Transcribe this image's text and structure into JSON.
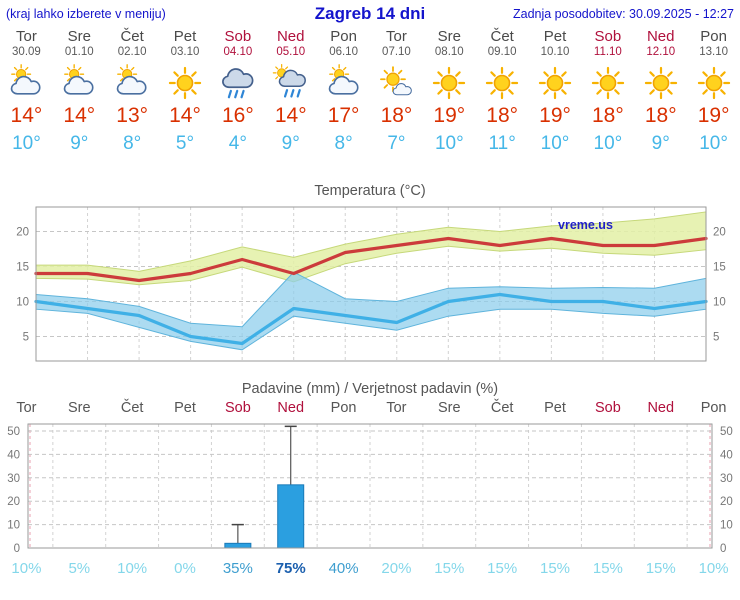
{
  "header": {
    "left_note": "(kraj lahko izberete v meniju)",
    "title": "Zagreb 14 dni",
    "updated": "Zadnja posodobitev: 30.09.2025 - 12:27"
  },
  "forecast": {
    "days": [
      {
        "name": "Tor",
        "date": "30.09",
        "icon": "cloud-sun",
        "tmax": "14°",
        "tmin": "10°",
        "weekend": false
      },
      {
        "name": "Sre",
        "date": "01.10",
        "icon": "cloud-sun",
        "tmax": "14°",
        "tmin": "9°",
        "weekend": false
      },
      {
        "name": "Čet",
        "date": "02.10",
        "icon": "cloud-sun",
        "tmax": "13°",
        "tmin": "8°",
        "weekend": false
      },
      {
        "name": "Pet",
        "date": "03.10",
        "icon": "sun",
        "tmax": "14°",
        "tmin": "5°",
        "weekend": false
      },
      {
        "name": "Sob",
        "date": "04.10",
        "icon": "rain",
        "tmax": "16°",
        "tmin": "4°",
        "weekend": true
      },
      {
        "name": "Ned",
        "date": "05.10",
        "icon": "rain-sun",
        "tmax": "14°",
        "tmin": "9°",
        "weekend": true
      },
      {
        "name": "Pon",
        "date": "06.10",
        "icon": "cloud-sun",
        "tmax": "17°",
        "tmin": "8°",
        "weekend": false
      },
      {
        "name": "Tor",
        "date": "07.10",
        "icon": "sun-cloud",
        "tmax": "18°",
        "tmin": "7°",
        "weekend": false
      },
      {
        "name": "Sre",
        "date": "08.10",
        "icon": "sun",
        "tmax": "19°",
        "tmin": "10°",
        "weekend": false
      },
      {
        "name": "Čet",
        "date": "09.10",
        "icon": "sun",
        "tmax": "18°",
        "tmin": "11°",
        "weekend": false
      },
      {
        "name": "Pet",
        "date": "10.10",
        "icon": "sun",
        "tmax": "19°",
        "tmin": "10°",
        "weekend": false
      },
      {
        "name": "Sob",
        "date": "11.10",
        "icon": "sun",
        "tmax": "18°",
        "tmin": "10°",
        "weekend": true
      },
      {
        "name": "Ned",
        "date": "12.10",
        "icon": "sun",
        "tmax": "18°",
        "tmin": "9°",
        "weekend": true
      },
      {
        "name": "Pon",
        "date": "13.10",
        "icon": "sun",
        "tmax": "19°",
        "tmin": "10°",
        "weekend": false
      }
    ]
  },
  "chart_data": [
    {
      "type": "line",
      "title": "Temperatura (°C)",
      "watermark": "vreme.us",
      "categories": [
        "Tor",
        "Sre",
        "Čet",
        "Pet",
        "Sob",
        "Ned",
        "Pon",
        "Tor",
        "Sre",
        "Čet",
        "Pet",
        "Sob",
        "Ned",
        "Pon"
      ],
      "yticks": [
        5,
        10,
        15,
        20
      ],
      "ylim": [
        1.5,
        23.5
      ],
      "series": [
        {
          "name": "Max temperatura",
          "color": "#cc3b3b",
          "values": [
            14,
            14,
            13,
            14,
            16,
            14,
            17,
            18,
            19,
            18,
            19,
            18,
            18,
            19
          ]
        },
        {
          "name": "Min temperatura",
          "color": "#3fb0e6",
          "values": [
            10,
            9,
            8,
            5,
            4,
            9,
            8,
            7,
            10,
            11,
            10,
            10,
            9,
            10
          ]
        }
      ],
      "bands": [
        {
          "name": "max-range",
          "color": "#e3f0a6",
          "upper": [
            15.2,
            15.2,
            14.3,
            15.8,
            17.8,
            16.3,
            18.2,
            19.6,
            20.6,
            20.0,
            20.8,
            21.2,
            21.8,
            22.8
          ],
          "lower": [
            13.3,
            13.2,
            12.4,
            13.0,
            14.9,
            12.8,
            15.4,
            16.9,
            17.9,
            17.2,
            17.6,
            16.9,
            16.6,
            17.4
          ]
        },
        {
          "name": "min-range",
          "color": "#8ccdeb",
          "upper": [
            11.0,
            10.4,
            9.3,
            6.9,
            6.4,
            14.2,
            10.4,
            10.0,
            11.9,
            12.1,
            11.9,
            12.0,
            11.9,
            13.3
          ],
          "lower": [
            8.9,
            8.3,
            6.3,
            4.3,
            3.1,
            7.9,
            6.9,
            5.9,
            7.9,
            8.9,
            8.9,
            8.3,
            7.9,
            8.9
          ]
        }
      ]
    },
    {
      "type": "bar",
      "title": "Padavine (mm) / Verjetnost padavin (%)",
      "categories": [
        "Tor",
        "Sre",
        "Čet",
        "Pet",
        "Sob",
        "Ned",
        "Pon",
        "Tor",
        "Sre",
        "Čet",
        "Pet",
        "Sob",
        "Ned",
        "Pon"
      ],
      "weekend": [
        false,
        false,
        false,
        false,
        true,
        true,
        false,
        false,
        false,
        false,
        false,
        true,
        true,
        false
      ],
      "precip_mm": [
        0,
        0,
        0,
        0,
        2,
        27,
        0,
        0,
        0,
        0,
        0,
        0,
        0,
        0
      ],
      "precip_max_mm": [
        0,
        0,
        0,
        0,
        10,
        52,
        0,
        0,
        0,
        0,
        0,
        0,
        0,
        0
      ],
      "probability": [
        "10%",
        "5%",
        "10%",
        "0%",
        "35%",
        "75%",
        "40%",
        "20%",
        "15%",
        "15%",
        "15%",
        "15%",
        "15%",
        "10%"
      ],
      "yticks": [
        0,
        10,
        20,
        30,
        40,
        50
      ],
      "ylim": [
        0,
        53
      ],
      "bar_color": "#2b9fe0"
    }
  ],
  "colors": {
    "header_blue": "#1414cc",
    "weekend_red": "#b0103c",
    "tmax_red": "#d93000",
    "tmin_blue": "#45b7e8",
    "grid": "#cccccc",
    "axis_text": "#777777",
    "watermark_blue": "#2020c8"
  }
}
